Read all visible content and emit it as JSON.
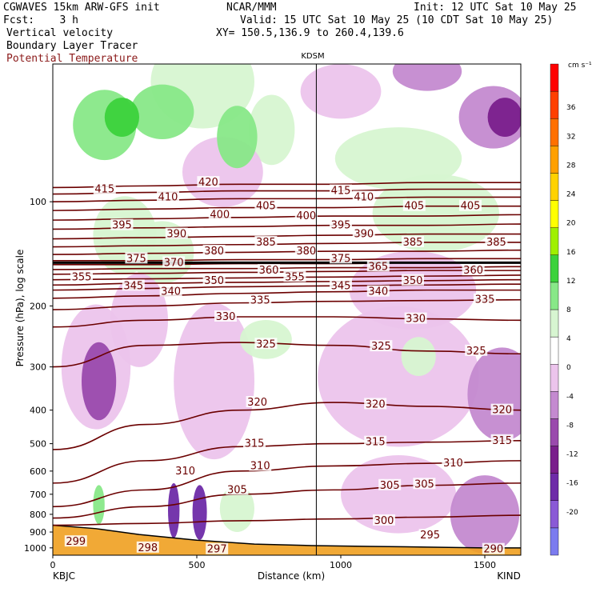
{
  "header": {
    "model": "CGWAVES 15km ARW-GFS init",
    "forecast": "Fcst:    3 h",
    "field1": "Vertical velocity",
    "field2": "Boundary Layer Tracer",
    "field3": "Potential Temperature",
    "org": "NCAR/MMM",
    "init": "Init: 12 UTC Sat 10 May 25",
    "valid": "Valid: 15 UTC Sat 10 May 25 (10 CDT Sat 10 May 25)",
    "xy": "XY= 150.5,136.9 to 260.4,139.6"
  },
  "chart_data": {
    "type": "heatmap",
    "xlabel": "Distance (km)",
    "ylabel": "Pressure (hPa), log scale",
    "x_range": [
      0,
      1625
    ],
    "y_range_hPa": [
      1050,
      40
    ],
    "log_y": true,
    "x_ticks": [
      0,
      500,
      1000,
      1500
    ],
    "y_ticks": [
      100,
      200,
      300,
      400,
      500,
      600,
      700,
      800,
      900,
      1000
    ],
    "stations": {
      "left": "KBJC",
      "mid": "KDSM",
      "right": "KIND",
      "mid_km": 915
    },
    "colorbar": {
      "units": "cm s⁻¹",
      "levels": [
        -20,
        -16,
        -12,
        -8,
        -4,
        0,
        4,
        8,
        12,
        16,
        20,
        24,
        28,
        32,
        36
      ],
      "colors": [
        "#7b7bef",
        "#8a5ad6",
        "#6e2ba8",
        "#7a1f8c",
        "#9a4aad",
        "#c48ad0",
        "#ecc4ec",
        "#ffffff",
        "#d7f5d1",
        "#88e888",
        "#3cd23c",
        "#a0f000",
        "#ffff00",
        "#ffd200",
        "#ffa000",
        "#ff7000",
        "#ff4000",
        "#ff0000"
      ]
    },
    "theta_contours": [
      {
        "theta": 300,
        "p": [
          860,
          850,
          835,
          825,
          815,
          805
        ]
      },
      {
        "theta": 305,
        "p": [
          820,
          760,
          700,
          680,
          660,
          650
        ]
      },
      {
        "theta": 310,
        "p": [
          760,
          680,
          600,
          580,
          570,
          560
        ]
      },
      {
        "theta": 315,
        "p": [
          650,
          560,
          510,
          500,
          495,
          490
        ]
      },
      {
        "theta": 320,
        "p": [
          520,
          440,
          400,
          380,
          390,
          400
        ]
      },
      {
        "theta": 325,
        "p": [
          300,
          260,
          255,
          260,
          270,
          275
        ]
      },
      {
        "theta": 330,
        "p": [
          230,
          220,
          215,
          215,
          218,
          220
        ]
      },
      {
        "theta": 335,
        "p": [
          205,
          200,
          196,
          194,
          193,
          192
        ]
      },
      {
        "theta": 340,
        "p": [
          190,
          187,
          184,
          182,
          180,
          180
        ]
      },
      {
        "theta": 345,
        "p": [
          180,
          178,
          176,
          175,
          174,
          173
        ]
      },
      {
        "theta": 350,
        "p": [
          174,
          172,
          171,
          170,
          169,
          168
        ]
      },
      {
        "theta": 355,
        "p": [
          168,
          167,
          166,
          165,
          164,
          163
        ]
      },
      {
        "theta": 360,
        "p": [
          162,
          161,
          160,
          159,
          158,
          158
        ]
      },
      {
        "theta": 365,
        "p": [
          157,
          156,
          156,
          155,
          155,
          154
        ]
      },
      {
        "theta": 370,
        "p": [
          152,
          152,
          151,
          151,
          150,
          150
        ]
      },
      {
        "theta": 375,
        "p": [
          148,
          148,
          147,
          147,
          146,
          146
        ]
      },
      {
        "theta": 380,
        "p": [
          142,
          141,
          140,
          139,
          139,
          138
        ]
      },
      {
        "theta": 385,
        "p": [
          135,
          134,
          133,
          132,
          131,
          131
        ]
      },
      {
        "theta": 390,
        "p": [
          128,
          127,
          126,
          125,
          124,
          124
        ]
      },
      {
        "theta": 395,
        "p": [
          120,
          119,
          118,
          117,
          117,
          116
        ]
      },
      {
        "theta": 400,
        "p": [
          113,
          112,
          111,
          110,
          110,
          109
        ]
      },
      {
        "theta": 405,
        "p": [
          106,
          105,
          104,
          104,
          103,
          103
        ]
      },
      {
        "theta": 410,
        "p": [
          100,
          99,
          98,
          98,
          97,
          97
        ]
      },
      {
        "theta": 415,
        "p": [
          95,
          94,
          93,
          93,
          92,
          92
        ]
      },
      {
        "theta": 420,
        "p": [
          91,
          90,
          89,
          89,
          88,
          88
        ]
      }
    ],
    "contour_x": [
      0,
      325,
      650,
      975,
      1300,
      1625
    ],
    "theta_labels": [
      {
        "t": "420",
        "x": 540,
        "p": 88
      },
      {
        "t": "415",
        "x": 180,
        "p": 92
      },
      {
        "t": "415",
        "x": 1000,
        "p": 93
      },
      {
        "t": "410",
        "x": 400,
        "p": 97
      },
      {
        "t": "410",
        "x": 1080,
        "p": 97
      },
      {
        "t": "405",
        "x": 740,
        "p": 103
      },
      {
        "t": "405",
        "x": 1255,
        "p": 103
      },
      {
        "t": "405",
        "x": 1450,
        "p": 103
      },
      {
        "t": "400",
        "x": 580,
        "p": 109
      },
      {
        "t": "400",
        "x": 880,
        "p": 110
      },
      {
        "t": "395",
        "x": 240,
        "p": 117
      },
      {
        "t": "395",
        "x": 1000,
        "p": 117
      },
      {
        "t": "390",
        "x": 430,
        "p": 124
      },
      {
        "t": "390",
        "x": 1080,
        "p": 124
      },
      {
        "t": "385",
        "x": 740,
        "p": 131
      },
      {
        "t": "385",
        "x": 1250,
        "p": 131
      },
      {
        "t": "385",
        "x": 1540,
        "p": 131
      },
      {
        "t": "380",
        "x": 560,
        "p": 139
      },
      {
        "t": "380",
        "x": 880,
        "p": 139
      },
      {
        "t": "375",
        "x": 290,
        "p": 146
      },
      {
        "t": "375",
        "x": 1000,
        "p": 146
      },
      {
        "t": "370",
        "x": 420,
        "p": 150
      },
      {
        "t": "365",
        "x": 1130,
        "p": 154
      },
      {
        "t": "360",
        "x": 750,
        "p": 158
      },
      {
        "t": "360",
        "x": 1460,
        "p": 158
      },
      {
        "t": "355",
        "x": 100,
        "p": 165
      },
      {
        "t": "355",
        "x": 840,
        "p": 165
      },
      {
        "t": "350",
        "x": 560,
        "p": 169
      },
      {
        "t": "350",
        "x": 1250,
        "p": 169
      },
      {
        "t": "345",
        "x": 280,
        "p": 175
      },
      {
        "t": "345",
        "x": 1000,
        "p": 175
      },
      {
        "t": "340",
        "x": 410,
        "p": 182
      },
      {
        "t": "340",
        "x": 1130,
        "p": 182
      },
      {
        "t": "335",
        "x": 720,
        "p": 193
      },
      {
        "t": "335",
        "x": 1500,
        "p": 192
      },
      {
        "t": "330",
        "x": 600,
        "p": 215
      },
      {
        "t": "330",
        "x": 1260,
        "p": 218
      },
      {
        "t": "325",
        "x": 740,
        "p": 258
      },
      {
        "t": "325",
        "x": 1140,
        "p": 262
      },
      {
        "t": "325",
        "x": 1470,
        "p": 270
      },
      {
        "t": "320",
        "x": 710,
        "p": 380
      },
      {
        "t": "320",
        "x": 1120,
        "p": 385
      },
      {
        "t": "320",
        "x": 1560,
        "p": 400
      },
      {
        "t": "315",
        "x": 700,
        "p": 500
      },
      {
        "t": "315",
        "x": 1120,
        "p": 495
      },
      {
        "t": "315",
        "x": 1560,
        "p": 490
      },
      {
        "t": "310",
        "x": 460,
        "p": 600
      },
      {
        "t": "310",
        "x": 720,
        "p": 580
      },
      {
        "t": "310",
        "x": 1390,
        "p": 570
      },
      {
        "t": "305",
        "x": 640,
        "p": 680
      },
      {
        "t": "305",
        "x": 1170,
        "p": 660
      },
      {
        "t": "305",
        "x": 1290,
        "p": 655
      },
      {
        "t": "300",
        "x": 1150,
        "p": 835
      },
      {
        "t": "299",
        "x": 80,
        "p": 960
      },
      {
        "t": "298",
        "x": 330,
        "p": 1000
      },
      {
        "t": "297",
        "x": 570,
        "p": 1010
      },
      {
        "t": "295",
        "x": 1310,
        "p": 920
      },
      {
        "t": "290",
        "x": 1530,
        "p": 1010
      }
    ],
    "terrain_p": [
      [
        0,
        860
      ],
      [
        150,
        880
      ],
      [
        300,
        915
      ],
      [
        500,
        950
      ],
      [
        700,
        975
      ],
      [
        900,
        985
      ],
      [
        1100,
        990
      ],
      [
        1300,
        995
      ],
      [
        1500,
        1000
      ],
      [
        1625,
        1000
      ]
    ],
    "w_blobs": [
      {
        "x": 380,
        "p": 140,
        "rx": 110,
        "pr": 0.08,
        "w": 3
      },
      {
        "x": 520,
        "p": 45,
        "rx": 180,
        "pr": 0.12,
        "w": 3
      },
      {
        "x": 640,
        "p": 65,
        "rx": 70,
        "pr": 0.08,
        "w": 6
      },
      {
        "x": 380,
        "p": 55,
        "rx": 110,
        "pr": 0.07,
        "w": 8
      },
      {
        "x": 240,
        "p": 57,
        "rx": 60,
        "pr": 0.05,
        "w": 10
      },
      {
        "x": 180,
        "p": 60,
        "rx": 110,
        "pr": 0.09,
        "w": 6
      },
      {
        "x": 760,
        "p": 62,
        "rx": 80,
        "pr": 0.09,
        "w": 3
      },
      {
        "x": 1000,
        "p": 48,
        "rx": 140,
        "pr": 0.07,
        "w": -3
      },
      {
        "x": 1530,
        "p": 57,
        "rx": 120,
        "pr": 0.08,
        "w": -4
      },
      {
        "x": 1570,
        "p": 57,
        "rx": 60,
        "pr": 0.05,
        "w": -8
      },
      {
        "x": 1300,
        "p": 42,
        "rx": 120,
        "pr": 0.05,
        "w": -4
      },
      {
        "x": 590,
        "p": 82,
        "rx": 140,
        "pr": 0.09,
        "w": -3
      },
      {
        "x": 1200,
        "p": 75,
        "rx": 220,
        "pr": 0.08,
        "w": 3
      },
      {
        "x": 1330,
        "p": 108,
        "rx": 220,
        "pr": 0.1,
        "w": 3
      },
      {
        "x": 250,
        "p": 125,
        "rx": 110,
        "pr": 0.1,
        "w": 5
      },
      {
        "x": 150,
        "p": 300,
        "rx": 120,
        "pr": 0.16,
        "w": -3
      },
      {
        "x": 160,
        "p": 330,
        "rx": 60,
        "pr": 0.1,
        "w": -6
      },
      {
        "x": 300,
        "p": 220,
        "rx": 100,
        "pr": 0.12,
        "w": -3
      },
      {
        "x": 560,
        "p": 330,
        "rx": 140,
        "pr": 0.2,
        "w": -3
      },
      {
        "x": 1200,
        "p": 320,
        "rx": 280,
        "pr": 0.18,
        "w": -3
      },
      {
        "x": 1560,
        "p": 360,
        "rx": 120,
        "pr": 0.12,
        "w": -5
      },
      {
        "x": 1250,
        "p": 180,
        "rx": 220,
        "pr": 0.1,
        "w": -3
      },
      {
        "x": 740,
        "p": 250,
        "rx": 90,
        "pr": 0.05,
        "w": 3
      },
      {
        "x": 1270,
        "p": 280,
        "rx": 60,
        "pr": 0.05,
        "w": 3
      },
      {
        "x": 420,
        "p": 780,
        "rx": 20,
        "pr": 0.07,
        "w": -12
      },
      {
        "x": 510,
        "p": 790,
        "rx": 25,
        "pr": 0.07,
        "w": -12
      },
      {
        "x": 160,
        "p": 750,
        "rx": 20,
        "pr": 0.05,
        "w": 8
      },
      {
        "x": 640,
        "p": 770,
        "rx": 60,
        "pr": 0.06,
        "w": 3
      },
      {
        "x": 1200,
        "p": 700,
        "rx": 200,
        "pr": 0.1,
        "w": -3
      },
      {
        "x": 1500,
        "p": 800,
        "rx": 120,
        "pr": 0.1,
        "w": -4
      }
    ]
  }
}
